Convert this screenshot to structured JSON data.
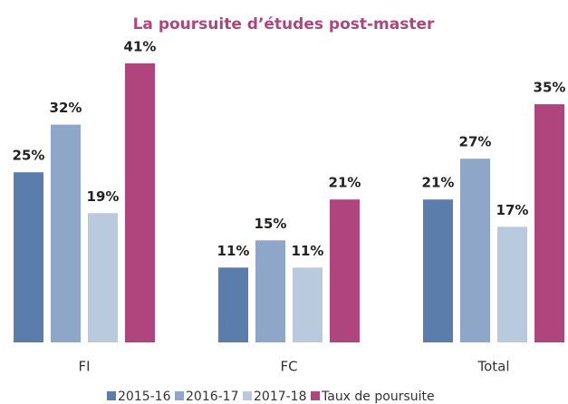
{
  "chart_data": {
    "type": "bar",
    "title": "La poursuite d’études post-master",
    "categories": [
      "FI",
      "FC",
      "Total"
    ],
    "series": [
      {
        "name": "2015-16",
        "color": "#5a7dab",
        "values": [
          25,
          11,
          21
        ],
        "value_labels": [
          "25%",
          "11%",
          "21%"
        ]
      },
      {
        "name": "2016-17",
        "color": "#8ea6c7",
        "values": [
          32,
          15,
          27
        ],
        "value_labels": [
          "32%",
          "15%",
          "27%"
        ]
      },
      {
        "name": "2017-18",
        "color": "#b9cadf",
        "values": [
          19,
          11,
          17
        ],
        "value_labels": [
          "19%",
          "11%",
          "17%"
        ]
      },
      {
        "name": "Taux de poursuite",
        "color": "#b0457e",
        "values": [
          41,
          21,
          35
        ],
        "value_labels": [
          "41%",
          "21%",
          "35%"
        ]
      }
    ],
    "legend": "bottom"
  }
}
